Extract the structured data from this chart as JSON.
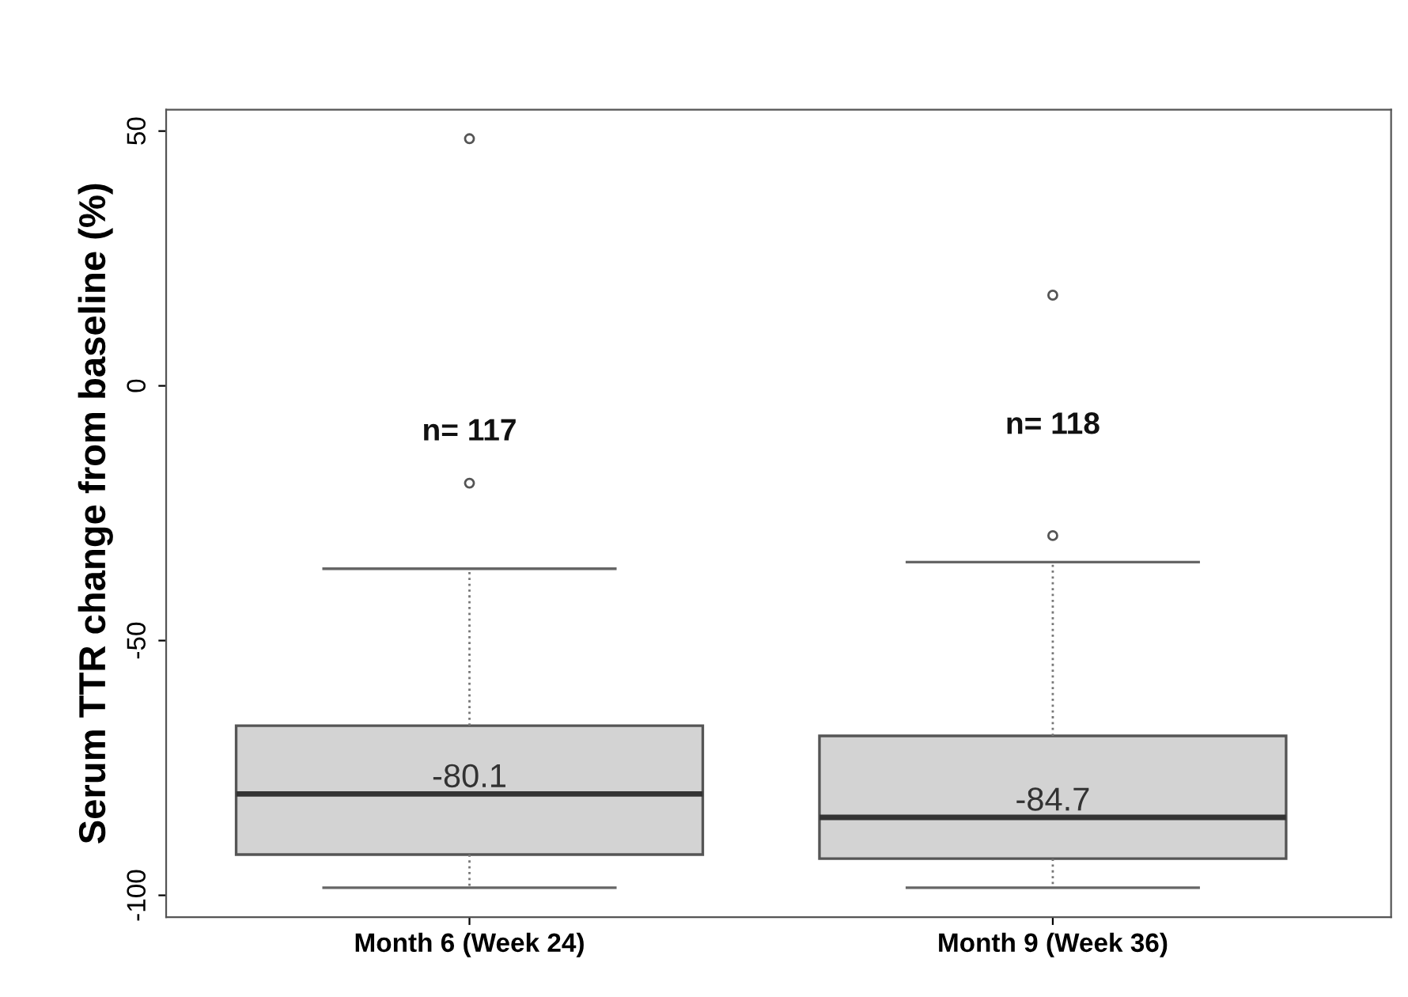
{
  "chart_data": {
    "type": "box",
    "ylabel": "Serum TTR change from baseline (%)",
    "categories": [
      "Month 6 (Week 24)",
      "Month 9 (Week 36)"
    ],
    "boxes": [
      {
        "low": -98.5,
        "q1": -92.0,
        "median": -80.1,
        "q3": -66.7,
        "high": -35.9,
        "outliers": [
          48.5,
          -19.1
        ]
      },
      {
        "low": -98.5,
        "q1": -92.8,
        "median": -84.7,
        "q3": -68.7,
        "high": -34.6,
        "outliers": [
          17.8,
          -29.4
        ]
      }
    ],
    "color": "#d3d3d3",
    "ylim": [
      -104.3,
      54.2
    ],
    "yticks": [
      -100,
      -50,
      0,
      50
    ],
    "annotations": [
      "n= 117",
      "n= 118",
      {
        "text": "-80.1",
        "x": "Month 6 (Week 24)",
        "y": -80.1
      },
      {
        "text": "-84.7",
        "x": "Month 9 (Week 36)",
        "y": -84.7
      }
    ],
    "grid": false,
    "legend": false
  }
}
